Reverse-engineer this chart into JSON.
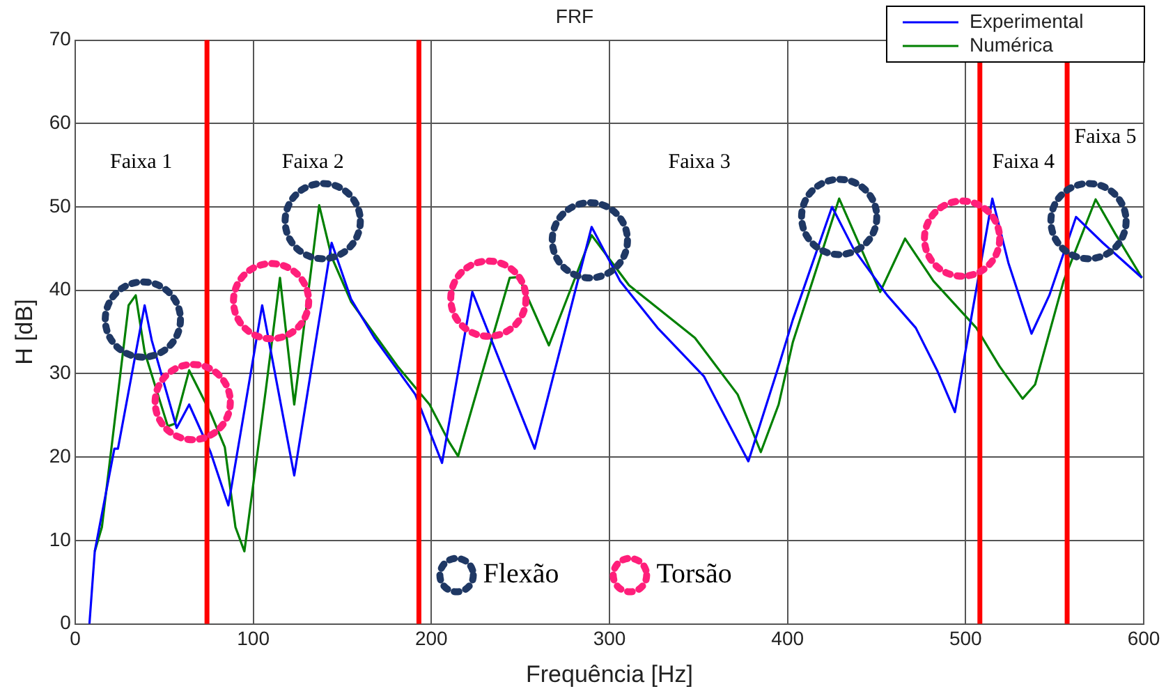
{
  "chart_data": {
    "type": "line",
    "title": "FRF",
    "xlabel": "Frequência [Hz]",
    "ylabel": "H [dB]",
    "xlim": [
      0,
      600
    ],
    "xticks": [
      0,
      100,
      200,
      300,
      400,
      500,
      600
    ],
    "ylim": [
      0,
      70
    ],
    "yticks": [
      0,
      10,
      20,
      30,
      40,
      50,
      60,
      70
    ],
    "grid": true,
    "legend": "top right",
    "series": [
      {
        "name": "Experimental",
        "color": "#0000ff",
        "x": [
          8,
          11,
          22,
          24,
          39,
          43,
          57,
          64,
          76,
          86,
          105,
          123,
          144,
          155,
          168,
          191,
          206,
          223,
          258,
          290,
          306,
          327,
          353,
          378,
          395,
          403,
          425,
          437,
          456,
          472,
          484,
          494,
          503,
          515,
          524,
          537,
          547,
          562,
          577,
          599
        ],
        "values": [
          0,
          8.7,
          21,
          21,
          38.2,
          34,
          23.5,
          26.3,
          20.6,
          14.2,
          38.2,
          17.8,
          45.7,
          38.9,
          34.3,
          27.5,
          19.3,
          39.8,
          21,
          47.6,
          41.1,
          35.5,
          29.7,
          19.5,
          30.9,
          36.5,
          50,
          45,
          39.4,
          35.5,
          30.4,
          25.4,
          36.5,
          51,
          43.3,
          34.8,
          39.4,
          48.8,
          45.7,
          41.5
        ]
      },
      {
        "name": "Numérica",
        "color": "#008000",
        "x": [
          11,
          15,
          30,
          34,
          39,
          52,
          56,
          64,
          76,
          84,
          90,
          95,
          107,
          115,
          123,
          137,
          144,
          155,
          181,
          199,
          210,
          215,
          244,
          249,
          266,
          290,
          311,
          348,
          372,
          385,
          395,
          403,
          429,
          452,
          466,
          482,
          506,
          519,
          532,
          539,
          555,
          573,
          584,
          599
        ],
        "values": [
          8.7,
          11.6,
          38.2,
          39.4,
          32.6,
          23.7,
          24,
          30.4,
          25.3,
          21.2,
          11.6,
          8.7,
          28,
          41.5,
          26.3,
          50.2,
          44,
          38.6,
          30.9,
          26.3,
          21.8,
          20.1,
          41.5,
          41.6,
          33.4,
          46.6,
          40.6,
          34.3,
          27.5,
          20.6,
          26.3,
          33.8,
          51,
          39.8,
          46.2,
          41.1,
          35.5,
          30.9,
          27,
          28.7,
          41.1,
          50.9,
          46.8,
          41.5
        ]
      },
      {
        "name": "Flexão",
        "type": "scatter",
        "color": "#1f3864",
        "x": [
          38,
          139,
          289,
          429,
          569
        ],
        "values": [
          36.5,
          48.3,
          46,
          48.8,
          48.3
        ]
      },
      {
        "name": "Torsão",
        "type": "scatter",
        "color": "#ff1f7a",
        "x": [
          66,
          110,
          232,
          498
        ],
        "values": [
          26.6,
          38.7,
          39,
          46.2
        ]
      }
    ],
    "ref_lines": [
      {
        "axis": "x",
        "value": 74,
        "color": "#ff0000"
      },
      {
        "axis": "x",
        "value": 193,
        "color": "#ff0000"
      },
      {
        "axis": "x",
        "value": 508,
        "color": "#ff0000"
      },
      {
        "axis": "x",
        "value": 557,
        "color": "#ff0000"
      }
    ],
    "annotations": [
      "Faixa 1",
      "Faixa 2",
      "Faixa 3",
      "Faixa 4",
      "Faixa 5"
    ]
  }
}
